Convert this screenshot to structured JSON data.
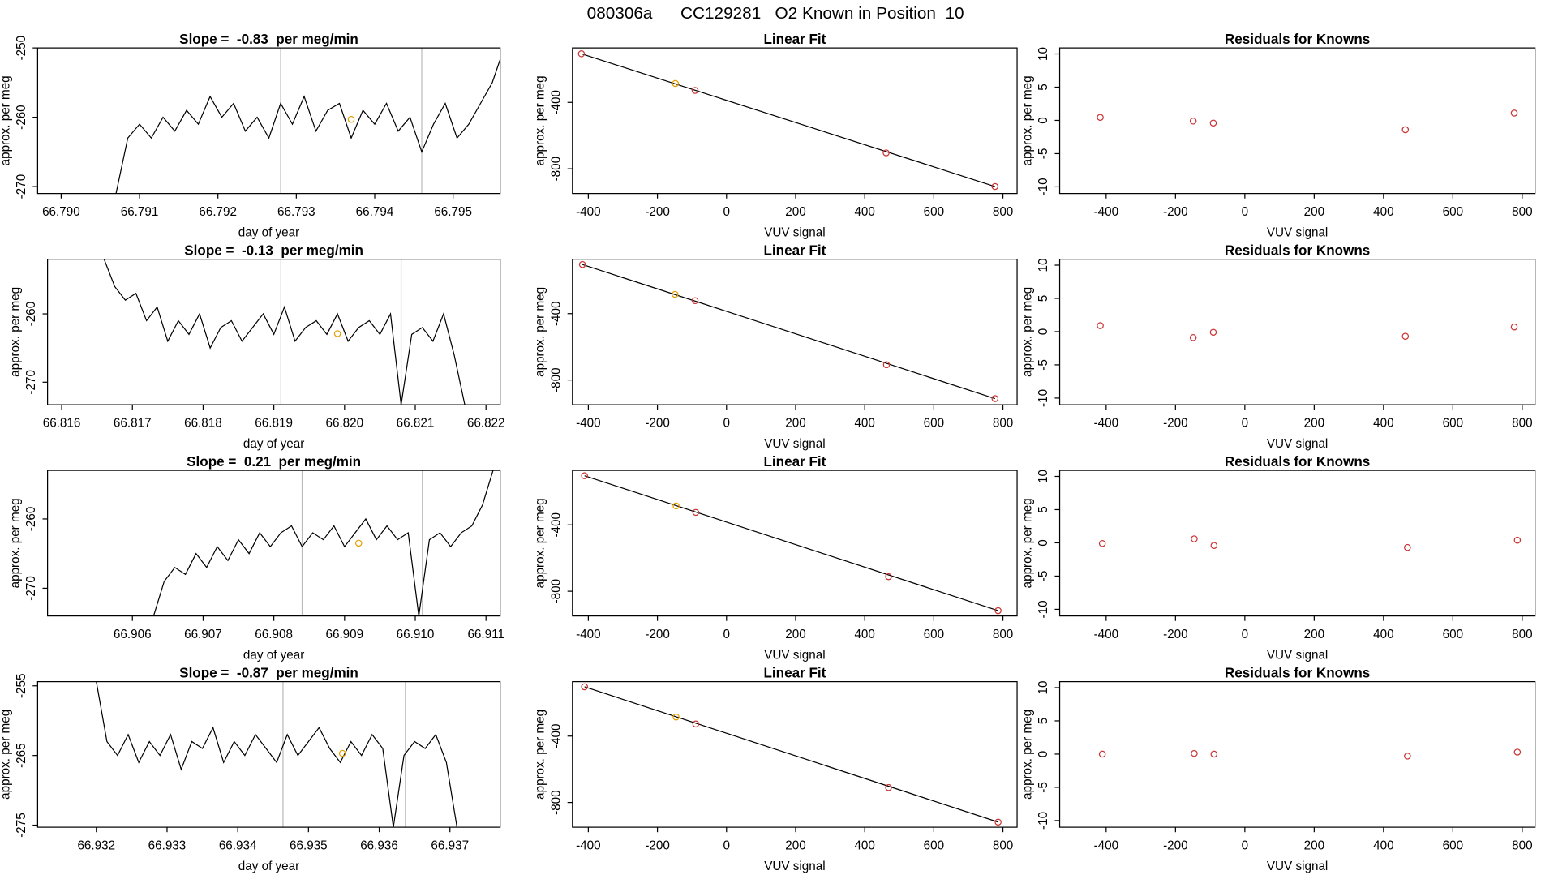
{
  "title": "080306a      CC129281   O2 Known in Position  10",
  "chart_data": [
    {
      "type": "line",
      "title": "Slope =  -0.83  per meg/min",
      "x_label": "day of year",
      "y_label": "approx. per meg",
      "color": "#000000",
      "xlim": [
        66.7897,
        66.7956
      ],
      "xticks": [
        {
          "value": 66.79,
          "label": "66.790"
        },
        66.791,
        66.792,
        66.793,
        66.794,
        66.795
      ],
      "ylim": [
        -271,
        -250
      ],
      "yticks": [
        -270,
        -260,
        -250
      ],
      "vlines": [
        66.7928,
        66.7946
      ],
      "vline_color": "#bbbbbb",
      "highlight": {
        "x": 66.7937,
        "value": -260.3,
        "color": "#e69f00"
      },
      "x": [
        66.7907,
        66.79085,
        66.791,
        66.79115,
        66.7913,
        66.79145,
        66.7916,
        66.79175,
        66.7919,
        66.79205,
        66.7922,
        66.79235,
        66.7925,
        66.79265,
        66.7928,
        66.79295,
        66.7931,
        66.79325,
        66.7934,
        66.79355,
        66.7937,
        66.79385,
        66.794,
        66.79415,
        66.7943,
        66.79445,
        66.7946,
        66.79475,
        66.7949,
        66.79505,
        66.7952,
        66.79535,
        66.7955,
        66.79565
      ],
      "values": [
        -271,
        -263,
        -261,
        -263,
        -260,
        -262,
        -259,
        -261,
        -257,
        -260,
        -258,
        -262,
        -260,
        -263,
        -258,
        -261,
        -257,
        -262,
        -259,
        -258,
        -263,
        -259,
        -261,
        -258,
        -262,
        -260,
        -265,
        -261,
        -258,
        -263,
        -261,
        -258,
        -255,
        -250
      ]
    },
    {
      "type": "scatter",
      "title": "Linear Fit",
      "x_label": "VUV signal",
      "y_label": "approx. per meg",
      "xlim": [
        -446,
        841
      ],
      "xticks": [
        -400,
        -200,
        0,
        200,
        400,
        600,
        800
      ],
      "ylim": [
        -949,
        -72
      ],
      "yticks": [
        -800,
        -400
      ],
      "x": [
        -420,
        -148,
        -91,
        462,
        777
      ],
      "values": [
        -107,
        -286,
        -328,
        -704,
        -907
      ],
      "point_colors": [
        "#cc3333",
        "#e69f00",
        "#cc3333",
        "#cc3333",
        "#cc3333"
      ],
      "fit": {
        "x": [
          -420,
          777
        ],
        "values": [
          -107,
          -907
        ],
        "color": "#000000"
      }
    },
    {
      "type": "scatter",
      "title": "Residuals for Knowns",
      "x_label": "VUV signal",
      "y_label": "approx. per meg",
      "xlim": [
        -534,
        837
      ],
      "xticks": [
        -400,
        -200,
        0,
        200,
        400,
        600,
        800
      ],
      "ylim": [
        -11,
        10.9
      ],
      "yticks": [
        -10,
        -5,
        0,
        5,
        10
      ],
      "x": [
        -417,
        -149,
        -91,
        463,
        777
      ],
      "values": [
        0.45,
        -0.1,
        -0.4,
        -1.4,
        1.1
      ],
      "color": "#cc3333"
    },
    {
      "type": "line",
      "title": "Slope =  -0.13  per meg/min",
      "x_label": "day of year",
      "y_label": "approx. per meg",
      "color": "#000000",
      "xlim": [
        66.8158,
        66.8222
      ],
      "xticks": [
        66.816,
        66.817,
        66.818,
        66.819,
        {
          "value": 66.82,
          "label": "66.820"
        },
        66.821,
        66.822
      ],
      "ylim": [
        -273.3,
        -252
      ],
      "yticks": [
        -270,
        -260
      ],
      "vlines": [
        66.8191,
        66.8208
      ],
      "vline_color": "#bbbbbb",
      "highlight": {
        "x": 66.8199,
        "value": -262.9,
        "color": "#e69f00"
      },
      "x": [
        66.8166,
        66.81675,
        66.8169,
        66.81705,
        66.8172,
        66.81735,
        66.8175,
        66.81765,
        66.8178,
        66.81795,
        66.8181,
        66.81825,
        66.8184,
        66.81855,
        66.8187,
        66.81885,
        66.819,
        66.81915,
        66.8193,
        66.81945,
        66.8196,
        66.81975,
        66.8199,
        66.82005,
        66.8202,
        66.82035,
        66.8205,
        66.82065,
        66.8208,
        66.82095,
        66.8211,
        66.82125,
        66.8214,
        66.82155,
        66.8217
      ],
      "values": [
        -252,
        -256,
        -258,
        -257,
        -261,
        -259,
        -264,
        -261,
        -263,
        -260,
        -265,
        -262,
        -261,
        -264,
        -262,
        -260,
        -263,
        -259,
        -264,
        -262,
        -261,
        -263,
        -260,
        -264,
        -262,
        -261,
        -263,
        -260,
        -273.3,
        -263,
        -262,
        -264,
        -260,
        -266,
        -273.3
      ]
    },
    {
      "type": "scatter",
      "title": "Linear Fit",
      "x_label": "VUV signal",
      "y_label": "approx. per meg",
      "xlim": [
        -446,
        841
      ],
      "xticks": [
        -400,
        -200,
        0,
        200,
        400,
        600,
        800
      ],
      "ylim": [
        -949,
        -72
      ],
      "yticks": [
        -800,
        -400
      ],
      "x": [
        -417,
        -149,
        -91,
        463,
        777
      ],
      "values": [
        -104,
        -284,
        -322,
        -708,
        -912
      ],
      "point_colors": [
        "#cc3333",
        "#e69f00",
        "#cc3333",
        "#cc3333",
        "#cc3333"
      ],
      "fit": {
        "x": [
          -417,
          777
        ],
        "values": [
          -104,
          -912
        ],
        "color": "#000000"
      }
    },
    {
      "type": "scatter",
      "title": "Residuals for Knowns",
      "x_label": "VUV signal",
      "y_label": "approx. per meg",
      "xlim": [
        -534,
        837
      ],
      "xticks": [
        -400,
        -200,
        0,
        200,
        400,
        600,
        800
      ],
      "ylim": [
        -11,
        10.9
      ],
      "yticks": [
        -10,
        -5,
        0,
        5,
        10
      ],
      "x": [
        -417,
        -149,
        -91,
        463,
        777
      ],
      "values": [
        0.9,
        -0.9,
        -0.1,
        -0.7,
        0.7
      ],
      "color": "#cc3333"
    },
    {
      "type": "line",
      "title": "Slope =  0.21  per meg/min",
      "x_label": "day of year",
      "y_label": "approx. per meg",
      "color": "#000000",
      "xlim": [
        66.9048,
        66.9112
      ],
      "xticks": [
        66.906,
        66.907,
        66.908,
        66.909,
        {
          "value": 66.91,
          "label": "66.910"
        },
        66.911
      ],
      "ylim": [
        -274,
        -253
      ],
      "yticks": [
        -270,
        -260
      ],
      "vlines": [
        66.9084,
        66.9101
      ],
      "vline_color": "#bbbbbb",
      "highlight": {
        "x": 66.9092,
        "value": -263.5,
        "color": "#e69f00"
      },
      "x": [
        66.9063,
        66.90645,
        66.9066,
        66.90675,
        66.9069,
        66.90705,
        66.9072,
        66.90735,
        66.9075,
        66.90765,
        66.9078,
        66.90795,
        66.9081,
        66.90825,
        66.9084,
        66.90855,
        66.9087,
        66.90885,
        66.909,
        66.90915,
        66.9093,
        66.90945,
        66.9096,
        66.90975,
        66.9099,
        66.91005,
        66.9102,
        66.91035,
        66.9105,
        66.91065,
        66.9108,
        66.91095,
        66.9111
      ],
      "values": [
        -274,
        -269,
        -267,
        -268,
        -265,
        -267,
        -264,
        -266,
        -263,
        -265,
        -262,
        -264,
        -262,
        -261,
        -264,
        -262,
        -263,
        -261,
        -264,
        -262,
        -260,
        -263,
        -261,
        -263,
        -262,
        -274,
        -263,
        -262,
        -264,
        -262,
        -261,
        -258,
        -253
      ]
    },
    {
      "type": "scatter",
      "title": "Linear Fit",
      "x_label": "VUV signal",
      "y_label": "approx. per meg",
      "xlim": [
        -446,
        841
      ],
      "xticks": [
        -400,
        -200,
        0,
        200,
        400,
        600,
        800
      ],
      "ylim": [
        -949,
        -72
      ],
      "yticks": [
        -800,
        -400
      ],
      "x": [
        -411,
        -146,
        -89,
        469,
        786
      ],
      "values": [
        -104,
        -286,
        -325,
        -712,
        -917
      ],
      "point_colors": [
        "#cc3333",
        "#e69f00",
        "#cc3333",
        "#cc3333",
        "#cc3333"
      ],
      "fit": {
        "x": [
          -411,
          786
        ],
        "values": [
          -104,
          -917
        ],
        "color": "#000000"
      }
    },
    {
      "type": "scatter",
      "title": "Residuals for Knowns",
      "x_label": "VUV signal",
      "y_label": "approx. per meg",
      "xlim": [
        -534,
        837
      ],
      "xticks": [
        -400,
        -200,
        0,
        200,
        400,
        600,
        800
      ],
      "ylim": [
        -11,
        10.9
      ],
      "yticks": [
        -10,
        -5,
        0,
        5,
        10
      ],
      "x": [
        -411,
        -146,
        -89,
        469,
        786
      ],
      "values": [
        -0.1,
        0.6,
        -0.4,
        -0.7,
        0.4
      ],
      "color": "#cc3333"
    },
    {
      "type": "line",
      "title": "Slope =  -0.87  per meg/min",
      "x_label": "day of year",
      "y_label": "approx. per meg",
      "color": "#000000",
      "xlim": [
        66.93117,
        66.93771
      ],
      "xticks": [
        66.932,
        66.933,
        66.934,
        66.935,
        66.936,
        66.937
      ],
      "ylim": [
        -275.3,
        -254.4
      ],
      "yticks": [
        -275,
        -265,
        -255
      ],
      "vlines": [
        66.93464,
        66.93637
      ],
      "vline_color": "#bbbbbb",
      "highlight": {
        "x": 66.93548,
        "value": -264.7,
        "color": "#e69f00"
      },
      "x": [
        66.932,
        66.93215,
        66.9323,
        66.93245,
        66.9326,
        66.93275,
        66.9329,
        66.93305,
        66.9332,
        66.93335,
        66.9335,
        66.93365,
        66.9338,
        66.93395,
        66.9341,
        66.93425,
        66.9344,
        66.93455,
        66.9347,
        66.93485,
        66.935,
        66.93515,
        66.9353,
        66.93545,
        66.9356,
        66.93575,
        66.9359,
        66.93605,
        66.9362,
        66.93635,
        66.9365,
        66.93665,
        66.9368,
        66.93695,
        66.9371
      ],
      "values": [
        -254.4,
        -263,
        -265,
        -262,
        -266,
        -263,
        -265,
        -262,
        -267,
        -263,
        -264,
        -261,
        -266,
        -263,
        -265,
        -262,
        -264,
        -266,
        -262,
        -265,
        -263,
        -261,
        -264,
        -266,
        -263,
        -265,
        -262,
        -264,
        -275.3,
        -265,
        -263,
        -264,
        -262,
        -266,
        -275.3
      ]
    },
    {
      "type": "scatter",
      "title": "Linear Fit",
      "x_label": "VUV signal",
      "y_label": "approx. per meg",
      "xlim": [
        -446,
        841
      ],
      "xticks": [
        -400,
        -200,
        0,
        200,
        400,
        600,
        800
      ],
      "ylim": [
        -949,
        -72
      ],
      "yticks": [
        -800,
        -400
      ],
      "x": [
        -411,
        -146,
        -89,
        469,
        786
      ],
      "values": [
        -103,
        -285,
        -327,
        -710,
        -918
      ],
      "point_colors": [
        "#cc3333",
        "#e69f00",
        "#cc3333",
        "#cc3333",
        "#cc3333"
      ],
      "fit": {
        "x": [
          -411,
          786
        ],
        "values": [
          -103,
          -918
        ],
        "color": "#000000"
      }
    },
    {
      "type": "scatter",
      "title": "Residuals for Knowns",
      "x_label": "VUV signal",
      "y_label": "approx. per meg",
      "xlim": [
        -534,
        837
      ],
      "xticks": [
        -400,
        -200,
        0,
        200,
        400,
        600,
        800
      ],
      "ylim": [
        -11,
        10.9
      ],
      "yticks": [
        -10,
        -5,
        0,
        5,
        10
      ],
      "x": [
        -411,
        -146,
        -89,
        469,
        786
      ],
      "values": [
        0,
        0.1,
        0,
        -0.3,
        0.3
      ],
      "color": "#cc3333"
    }
  ]
}
